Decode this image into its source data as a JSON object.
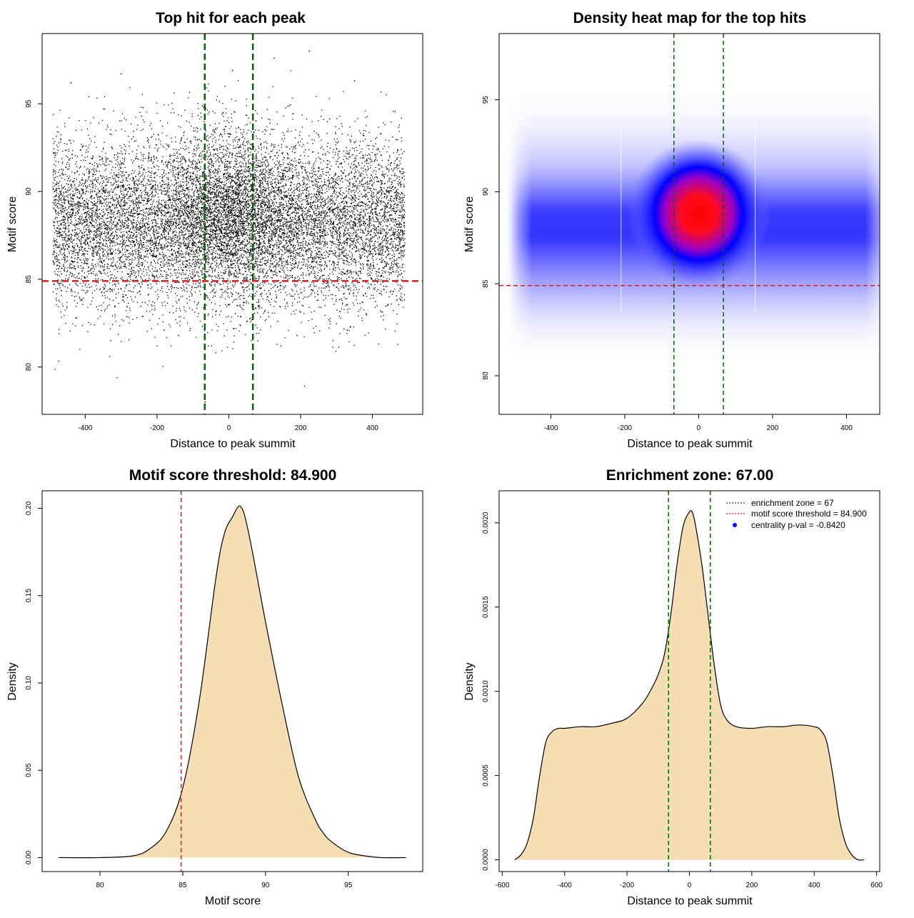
{
  "chart_data": [
    {
      "id": "scatter",
      "type": "scatter",
      "title": "Top hit for each peak",
      "xlabel": "Distance to peak summit",
      "ylabel": "Motif score",
      "xlim": [
        -520,
        540
      ],
      "ylim": [
        77.3,
        99
      ],
      "xticks": [
        -400,
        -200,
        0,
        200,
        400
      ],
      "yticks": [
        80,
        85,
        90,
        95
      ],
      "x_range_points": [
        -490,
        490
      ],
      "y_center": 88.2,
      "y_sd": 2.3,
      "center_enhancement": {
        "y_center": 89.2,
        "sd_x": 90
      },
      "point_count": 14000,
      "outliers": [
        {
          "x": 224,
          "y": 98
        },
        {
          "x": 126,
          "y": 97.6
        },
        {
          "x": -66,
          "y": 78
        },
        {
          "x": -300,
          "y": 96.7
        },
        {
          "x": 350,
          "y": 96.3
        },
        {
          "x": -440,
          "y": 96.2
        },
        {
          "x": 10,
          "y": 96.9
        },
        {
          "x": -180,
          "y": 82.1
        },
        {
          "x": 190,
          "y": 81.8
        },
        {
          "x": -140,
          "y": 81.8
        },
        {
          "x": 330,
          "y": 82.1
        }
      ],
      "vlines": [
        -67,
        67
      ],
      "hline": 84.9,
      "vline_color": "#006400",
      "hline_color": "#e31a1c"
    },
    {
      "id": "heatmap",
      "type": "heatmap",
      "title": "Density heat map for the top hits",
      "xlabel": "Distance to peak summit",
      "ylabel": "Motif score",
      "xlim": [
        -540,
        490
      ],
      "ylim": [
        77.9,
        98.6
      ],
      "xticks": [
        -400,
        -200,
        0,
        200,
        400
      ],
      "yticks": [
        80,
        85,
        90,
        95
      ],
      "background_band": {
        "x_range": [
          -490,
          490
        ],
        "y_center": 88.2,
        "y_sd": 2.4
      },
      "hotspot": {
        "x": 0,
        "y": 88.8
      },
      "low_color": "#ffffff",
      "mid_color": "#0000ff",
      "high_color": "#ff0000",
      "vlines": [
        -67,
        67
      ],
      "hline": 84.9,
      "vline_color": "#006400",
      "hline_color": "#e31a1c"
    },
    {
      "id": "motif-density",
      "type": "area",
      "title": "Motif score threshold: 84.900",
      "xlabel": "Motif score",
      "ylabel": "Density",
      "xlim": [
        76.5,
        99.5
      ],
      "ylim": [
        -0.008,
        0.21
      ],
      "xticks": [
        80,
        85,
        90,
        95
      ],
      "yticks": [
        0.0,
        0.05,
        0.1,
        0.15,
        0.2
      ],
      "ytick_labels": [
        "0.00",
        "0.05",
        "0.10",
        "0.15",
        "0.20"
      ],
      "x": [
        77.5,
        80,
        82,
        83,
        84,
        85,
        86,
        87,
        87.5,
        88,
        88.5,
        89,
        90,
        91,
        92,
        93,
        93.5,
        94,
        95,
        96,
        97,
        98.5
      ],
      "y": [
        0.0,
        0.0,
        0.001,
        0.005,
        0.015,
        0.04,
        0.09,
        0.16,
        0.185,
        0.195,
        0.201,
        0.185,
        0.135,
        0.088,
        0.046,
        0.022,
        0.014,
        0.009,
        0.003,
        0.001,
        0.0,
        0.0
      ],
      "fill": "#f5deb3",
      "vline": 84.9,
      "vline_color": "#e31a1c"
    },
    {
      "id": "distance-density",
      "type": "area",
      "title": "Enrichment zone: 67.00",
      "xlabel": "Distance to peak summit",
      "ylabel": "Density",
      "xlim": [
        -610,
        610
      ],
      "ylim": [
        -7e-05,
        0.00219
      ],
      "xticks": [
        -600,
        -400,
        -200,
        0,
        200,
        400,
        600
      ],
      "yticks": [
        0.0,
        0.0005,
        0.001,
        0.0015,
        0.002
      ],
      "ytick_labels": [
        "0.0000",
        "0.0005",
        "0.0010",
        "0.0015",
        "0.0020"
      ],
      "x": [
        -560,
        -540,
        -520,
        -500,
        -480,
        -460,
        -440,
        -420,
        -400,
        -350,
        -300,
        -250,
        -200,
        -150,
        -120,
        -100,
        -80,
        -60,
        -40,
        -20,
        0,
        10,
        20,
        40,
        60,
        80,
        100,
        120,
        150,
        200,
        250,
        300,
        350,
        400,
        420,
        440,
        460,
        480,
        500,
        520,
        540,
        560
      ],
      "y": [
        0.0,
        3e-05,
        0.0001,
        0.00025,
        0.0005,
        0.0007,
        0.00076,
        0.00078,
        0.00078,
        0.00079,
        0.00079,
        0.00081,
        0.00084,
        0.00093,
        0.00102,
        0.0011,
        0.00122,
        0.00145,
        0.00175,
        0.00198,
        0.002065,
        0.00206,
        0.00198,
        0.00175,
        0.00145,
        0.00115,
        0.00092,
        0.00083,
        0.00079,
        0.00078,
        0.00079,
        0.00079,
        0.0008,
        0.00079,
        0.00077,
        0.0007,
        0.0005,
        0.00025,
        0.0001,
        3e-05,
        0.0,
        0.0
      ],
      "fill": "#f5deb3",
      "vlines": [
        -67,
        67
      ],
      "vline_color": "#006400",
      "legend": {
        "placement": "top-right",
        "entries": [
          {
            "label": "enrichment zone = 67",
            "color": "#006400",
            "kind": "line"
          },
          {
            "label": "motif score threshold = 84.900",
            "color": "#e31a1c",
            "kind": "line"
          },
          {
            "label": "centrality p-val = -0.8420",
            "color": "#0000ff",
            "kind": "point"
          }
        ]
      }
    }
  ]
}
